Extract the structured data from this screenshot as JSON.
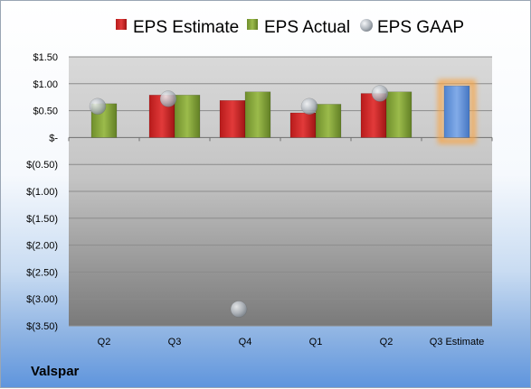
{
  "company": "Valspar",
  "chart_data": {
    "type": "bar",
    "categories": [
      "Q2",
      "Q3",
      "Q4",
      "Q1",
      "Q2",
      "Q3 Estimate"
    ],
    "series": [
      {
        "name": "EPS Estimate",
        "kind": "bar",
        "color": "#d42a2a",
        "values": [
          null,
          0.79,
          0.69,
          0.46,
          0.82,
          null
        ]
      },
      {
        "name": "EPS Actual",
        "kind": "bar",
        "color": "#8aab3c",
        "values": [
          0.63,
          0.79,
          0.85,
          0.62,
          0.85,
          null
        ]
      },
      {
        "name": "EPS GAAP",
        "kind": "marker",
        "color": "#b9bfc6",
        "values": [
          0.58,
          0.72,
          -3.19,
          0.58,
          0.82,
          null
        ]
      },
      {
        "name": "",
        "kind": "bar",
        "color": "#6d9be0",
        "highlight": "#f6a64a",
        "values": [
          null,
          null,
          null,
          null,
          null,
          0.96
        ]
      }
    ],
    "y_ticks": [
      "$1.50",
      "$1.00",
      "$0.50",
      "$-",
      "$(0.50)",
      "$(1.00)",
      "$(1.50)",
      "$(2.00)",
      "$(2.50)",
      "$(3.00)",
      "$(3.50)"
    ],
    "y_tick_values": [
      1.5,
      1.0,
      0.5,
      0,
      -0.5,
      -1.0,
      -1.5,
      -2.0,
      -2.5,
      -3.0,
      -3.5
    ],
    "ylim": [
      -3.5,
      1.5
    ],
    "grid": true,
    "legend_position": "top"
  }
}
